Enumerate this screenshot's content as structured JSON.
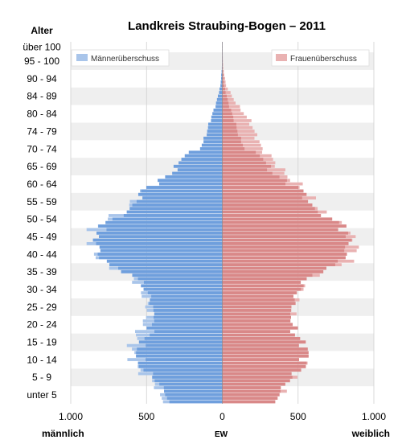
{
  "chart_data": {
    "type": "bar",
    "title": "Landkreis Straubing-Bogen – 2011",
    "y_axis_title": "Alter",
    "age_group_labels": [
      "unter 5",
      "5 - 9",
      "10 - 14",
      "15 - 19",
      "20 - 24",
      "25 - 29",
      "30 - 34",
      "35 - 39",
      "40 - 44",
      "45 - 49",
      "50 - 54",
      "55 - 59",
      "60 - 64",
      "65 - 69",
      "70 - 74",
      "74 - 79",
      "80 - 84",
      "84 - 89",
      "90 - 94",
      "95 - 100",
      "über 100"
    ],
    "x_tick_labels": [
      "1.000",
      "500",
      "0",
      "500",
      "1.000"
    ],
    "x_axis_unit": "EW",
    "left_side_label": "männlich",
    "right_side_label": "weiblich",
    "xlim": [
      -1000,
      1000
    ],
    "age_range": [
      0,
      102
    ],
    "legend": [
      {
        "name": "Männerüberschuss",
        "color": "#a9c5ea",
        "placement": "top-left"
      },
      {
        "name": "Frauenüberschuss",
        "color": "#e9b2b2",
        "placement": "top-right"
      }
    ],
    "colors": {
      "male": "#6f9fdd",
      "female": "#d98888",
      "male_surplus": "#a9c5ea",
      "female_surplus": "#e9b2b2"
    },
    "band_keypoints": {
      "ages": [
        0,
        5,
        10,
        15,
        20,
        25,
        30,
        35,
        40,
        45,
        50,
        55,
        60,
        65,
        70,
        72,
        75,
        80,
        85,
        90,
        95,
        100
      ],
      "male": [
        380,
        440,
        570,
        600,
        550,
        480,
        510,
        580,
        800,
        850,
        840,
        620,
        530,
        330,
        260,
        150,
        115,
        80,
        40,
        12,
        3,
        1
      ],
      "female": [
        360,
        420,
        540,
        560,
        470,
        460,
        490,
        560,
        830,
        880,
        800,
        620,
        550,
        410,
        310,
        260,
        230,
        180,
        90,
        25,
        6,
        1
      ]
    }
  }
}
